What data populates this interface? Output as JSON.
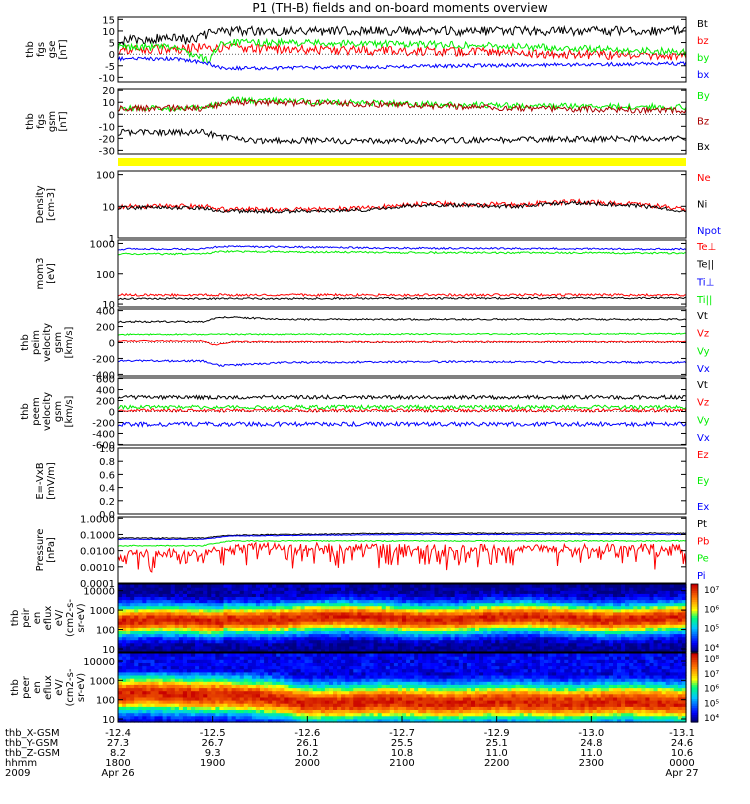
{
  "title": "P1 (TH-B) fields and on-board moments overview",
  "chart_data": [
    {
      "id": "p1",
      "type": "line",
      "ylabel": [
        "thb",
        "fgs",
        "gse",
        "[nT]"
      ],
      "yticks": [
        15,
        10,
        5,
        0,
        -5,
        -10
      ],
      "ylim": [
        -12,
        16
      ],
      "series": [
        {
          "name": "Bt",
          "color": "#000000",
          "noise": 2.0,
          "profile": [
            [
              0,
              6
            ],
            [
              0.05,
              6
            ],
            [
              0.1,
              8
            ],
            [
              0.12,
              6
            ],
            [
              0.18,
              10
            ],
            [
              0.3,
              10
            ],
            [
              0.6,
              10
            ],
            [
              1,
              10
            ]
          ]
        },
        {
          "name": "bz",
          "color": "#ff0000",
          "noise": 2.0,
          "profile": [
            [
              0,
              2
            ],
            [
              0.1,
              2
            ],
            [
              0.16,
              3
            ],
            [
              0.3,
              2
            ],
            [
              0.6,
              1
            ],
            [
              1,
              -1
            ]
          ]
        },
        {
          "name": "by",
          "color": "#00ee00",
          "noise": 1.5,
          "profile": [
            [
              0,
              3
            ],
            [
              0.1,
              3
            ],
            [
              0.16,
              -3
            ],
            [
              0.18,
              5
            ],
            [
              0.3,
              5
            ],
            [
              0.6,
              4
            ],
            [
              1,
              1
            ]
          ]
        },
        {
          "name": "bx",
          "color": "#0000ff",
          "noise": 0.8,
          "profile": [
            [
              0,
              -2
            ],
            [
              0.1,
              -2
            ],
            [
              0.16,
              -4
            ],
            [
              0.18,
              -6
            ],
            [
              0.3,
              -6
            ],
            [
              0.6,
              -5
            ],
            [
              1,
              -4
            ]
          ]
        }
      ]
    },
    {
      "id": "p2",
      "type": "line",
      "ylabel": [
        "thb",
        "fgs",
        "gsm",
        "[nT]"
      ],
      "yticks": [
        20,
        10,
        0,
        -10,
        -20,
        -30
      ],
      "ylim": [
        -33,
        21
      ],
      "series": [
        {
          "name": "By",
          "color": "#00ee00",
          "noise": 2.5,
          "profile": [
            [
              0,
              5
            ],
            [
              0.15,
              5
            ],
            [
              0.2,
              12
            ],
            [
              0.4,
              10
            ],
            [
              0.7,
              7
            ],
            [
              1,
              6
            ]
          ]
        },
        {
          "name": "Bz",
          "color": "#aa0000",
          "noise": 2.5,
          "profile": [
            [
              0,
              5
            ],
            [
              0.15,
              5
            ],
            [
              0.2,
              10
            ],
            [
              0.4,
              9
            ],
            [
              0.7,
              5
            ],
            [
              1,
              3
            ]
          ]
        },
        {
          "name": "Bx",
          "color": "#000000",
          "noise": 2.5,
          "profile": [
            [
              0,
              -15
            ],
            [
              0.15,
              -15
            ],
            [
              0.19,
              -20
            ],
            [
              0.25,
              -22
            ],
            [
              0.5,
              -22
            ],
            [
              1,
              -20
            ]
          ]
        }
      ]
    },
    {
      "id": "p3",
      "type": "line",
      "ylabel": [
        "Density",
        "[cm-3]"
      ],
      "scale": "log",
      "yticks": [
        100,
        10,
        1
      ],
      "ylim": [
        1,
        130
      ],
      "series": [
        {
          "name": "Ne",
          "color": "#ff0000",
          "noise": 0.08,
          "profile": [
            [
              0,
              10
            ],
            [
              0.15,
              10
            ],
            [
              0.18,
              8
            ],
            [
              0.35,
              8
            ],
            [
              0.45,
              9
            ],
            [
              0.5,
              11
            ],
            [
              0.55,
              12
            ],
            [
              0.7,
              11
            ],
            [
              0.8,
              14
            ],
            [
              0.9,
              12
            ],
            [
              1,
              8
            ]
          ]
        },
        {
          "name": "Ni",
          "color": "#000000",
          "noise": 0.06,
          "profile": [
            [
              0,
              9
            ],
            [
              0.15,
              9
            ],
            [
              0.18,
              7
            ],
            [
              0.35,
              7
            ],
            [
              0.45,
              8
            ],
            [
              0.5,
              10
            ],
            [
              0.55,
              11
            ],
            [
              0.7,
              10
            ],
            [
              0.8,
              13
            ],
            [
              0.9,
              11
            ],
            [
              1,
              7
            ]
          ]
        },
        {
          "name": "Npot",
          "color": "#0000ff",
          "noise": 0,
          "profile": []
        }
      ]
    },
    {
      "id": "p4",
      "type": "line",
      "ylabel": [
        "mom3",
        "[eV]"
      ],
      "scale": "log",
      "yticks": [
        1000,
        100,
        10
      ],
      "ylim": [
        8,
        1300
      ],
      "series": [
        {
          "name": "Te⊥",
          "color": "#ff0000",
          "noise": 0.04,
          "profile": [
            [
              0,
              20
            ],
            [
              1,
              20
            ]
          ]
        },
        {
          "name": "Te||",
          "color": "#000000",
          "noise": 0.03,
          "profile": [
            [
              0,
              15
            ],
            [
              1,
              16
            ]
          ]
        },
        {
          "name": "Ti⊥",
          "color": "#0000ff",
          "noise": 0.03,
          "profile": [
            [
              0,
              650
            ],
            [
              0.15,
              650
            ],
            [
              0.18,
              800
            ],
            [
              0.5,
              700
            ],
            [
              1,
              650
            ]
          ]
        },
        {
          "name": "Ti||",
          "color": "#00ee00",
          "noise": 0.03,
          "profile": [
            [
              0,
              450
            ],
            [
              0.15,
              450
            ],
            [
              0.18,
              550
            ],
            [
              0.5,
              500
            ],
            [
              1,
              480
            ]
          ]
        }
      ]
    },
    {
      "id": "p5",
      "type": "line",
      "ylabel": [
        "thb",
        "peim",
        "velocity",
        "gsm",
        "[km/s]"
      ],
      "yticks": [
        400,
        200,
        0,
        -200,
        -400
      ],
      "ylim": [
        -420,
        420
      ],
      "series": [
        {
          "name": "Vt",
          "color": "#000000",
          "noise": 10,
          "profile": [
            [
              0,
              260
            ],
            [
              0.15,
              260
            ],
            [
              0.18,
              320
            ],
            [
              0.3,
              290
            ],
            [
              0.6,
              290
            ],
            [
              1,
              290
            ]
          ]
        },
        {
          "name": "Vz",
          "color": "#ff0000",
          "noise": 8,
          "profile": [
            [
              0,
              20
            ],
            [
              0.15,
              20
            ],
            [
              0.17,
              -30
            ],
            [
              0.2,
              10
            ],
            [
              1,
              10
            ]
          ]
        },
        {
          "name": "Vy",
          "color": "#00ee00",
          "noise": 8,
          "profile": [
            [
              0,
              100
            ],
            [
              1,
              110
            ]
          ]
        },
        {
          "name": "Vx",
          "color": "#0000ff",
          "noise": 12,
          "profile": [
            [
              0,
              -230
            ],
            [
              0.15,
              -230
            ],
            [
              0.18,
              -290
            ],
            [
              0.3,
              -250
            ],
            [
              0.6,
              -240
            ],
            [
              1,
              -250
            ]
          ]
        }
      ]
    },
    {
      "id": "p6",
      "type": "line",
      "ylabel": [
        "thb",
        "peem",
        "velocity",
        "gsm",
        "[km/s]"
      ],
      "yticks": [
        600,
        400,
        200,
        0,
        -200,
        -400,
        -600
      ],
      "ylim": [
        -610,
        610
      ],
      "series": [
        {
          "name": "Vt",
          "color": "#000000",
          "noise": 35,
          "profile": [
            [
              0,
              260
            ],
            [
              1,
              260
            ]
          ]
        },
        {
          "name": "Vz",
          "color": "#ff0000",
          "noise": 30,
          "profile": [
            [
              0,
              20
            ],
            [
              1,
              20
            ]
          ]
        },
        {
          "name": "Vy",
          "color": "#00ee00",
          "noise": 35,
          "profile": [
            [
              0,
              80
            ],
            [
              1,
              80
            ]
          ]
        },
        {
          "name": "Vx",
          "color": "#0000ff",
          "noise": 40,
          "profile": [
            [
              0,
              -230
            ],
            [
              1,
              -230
            ]
          ]
        }
      ]
    },
    {
      "id": "p7",
      "type": "line",
      "ylabel": [
        "E=-VxB",
        "[mV/m]"
      ],
      "yticks": [
        "1.0",
        "0.8",
        "0.6",
        "0.4",
        "0.2",
        "0.0"
      ],
      "ylim": [
        0,
        1
      ],
      "series": [
        {
          "name": "Ez",
          "color": "#ff0000",
          "noise": 0,
          "profile": []
        },
        {
          "name": "Ey",
          "color": "#00ee00",
          "noise": 0,
          "profile": []
        },
        {
          "name": "Ex",
          "color": "#0000ff",
          "noise": 0,
          "profile": []
        }
      ]
    },
    {
      "id": "p8",
      "type": "line",
      "ylabel": [
        "Pressure",
        "[nPa]"
      ],
      "scale": "log",
      "yticks": [
        "1.0000",
        "0.1000",
        "0.0100",
        "0.0010",
        "0.0001"
      ],
      "ylim": [
        0.0001,
        1.2
      ],
      "series": [
        {
          "name": "Pt",
          "color": "#000000",
          "noise": 0.03,
          "profile": [
            [
              0,
              0.06
            ],
            [
              0.15,
              0.06
            ],
            [
              0.2,
              0.09
            ],
            [
              0.5,
              0.12
            ],
            [
              1,
              0.12
            ]
          ]
        },
        {
          "name": "Pb",
          "color": "#ff0000",
          "noise": 0.25,
          "spiky": true,
          "profile": [
            [
              0,
              0.008
            ],
            [
              0.15,
              0.008
            ],
            [
              0.2,
              0.02
            ],
            [
              0.5,
              0.015
            ],
            [
              1,
              0.015
            ]
          ]
        },
        {
          "name": "Pe",
          "color": "#00ee00",
          "noise": 0.03,
          "profile": [
            [
              0,
              0.02
            ],
            [
              0.15,
              0.02
            ],
            [
              0.2,
              0.04
            ],
            [
              1,
              0.04
            ]
          ]
        },
        {
          "name": "Pi",
          "color": "#0000ff",
          "noise": 0.02,
          "profile": [
            [
              0,
              0.05
            ],
            [
              0.15,
              0.05
            ],
            [
              0.2,
              0.08
            ],
            [
              0.5,
              0.1
            ],
            [
              1,
              0.1
            ]
          ]
        }
      ]
    },
    {
      "id": "p9",
      "type": "heatmap",
      "ylabel": [
        "thb",
        "peir",
        "en",
        "eflux",
        "eV/",
        "(cm2-s-",
        "sr-eV)"
      ],
      "scale": "log",
      "yticks": [
        10000,
        1000,
        100,
        10
      ],
      "ylim": [
        7,
        22000
      ],
      "zlim": [
        1000,
        10000000
      ],
      "colorbar_ticks": [
        "10⁷",
        "10⁶",
        "10⁵",
        "10⁴"
      ]
    },
    {
      "id": "p10",
      "type": "heatmap",
      "ylabel": [
        "thb",
        "peer",
        "en",
        "eflux",
        "eV/",
        "(cm2-s-",
        "sr-eV)"
      ],
      "scale": "log",
      "yticks": [
        10000,
        1000,
        100,
        10
      ],
      "ylim": [
        7,
        26000
      ],
      "zlim": [
        10000,
        100000000
      ],
      "colorbar_ticks": [
        "10⁸",
        "10⁷",
        "10⁶",
        "10⁵",
        "10⁴"
      ]
    }
  ],
  "x_axis": {
    "rows": [
      {
        "label": "thb_X-GSM",
        "values": [
          "-12.4",
          "-12.5",
          "-12.6",
          "-12.7",
          "-12.9",
          "-13.0",
          "-13.1"
        ]
      },
      {
        "label": "thb_Y-GSM",
        "values": [
          "27.3",
          "26.7",
          "26.1",
          "25.5",
          "25.1",
          "24.8",
          "24.6"
        ]
      },
      {
        "label": "thb_Z-GSM",
        "values": [
          "8.2",
          "9.3",
          "10.2",
          "10.8",
          "11.0",
          "11.0",
          "10.6"
        ]
      },
      {
        "label": "hhmm",
        "values": [
          "1800",
          "1900",
          "2000",
          "2100",
          "2200",
          "2300",
          "0000"
        ]
      },
      {
        "label": "2009",
        "values": [
          "Apr 26",
          "",
          "",
          "",
          "",
          "",
          "Apr 27"
        ]
      }
    ]
  }
}
